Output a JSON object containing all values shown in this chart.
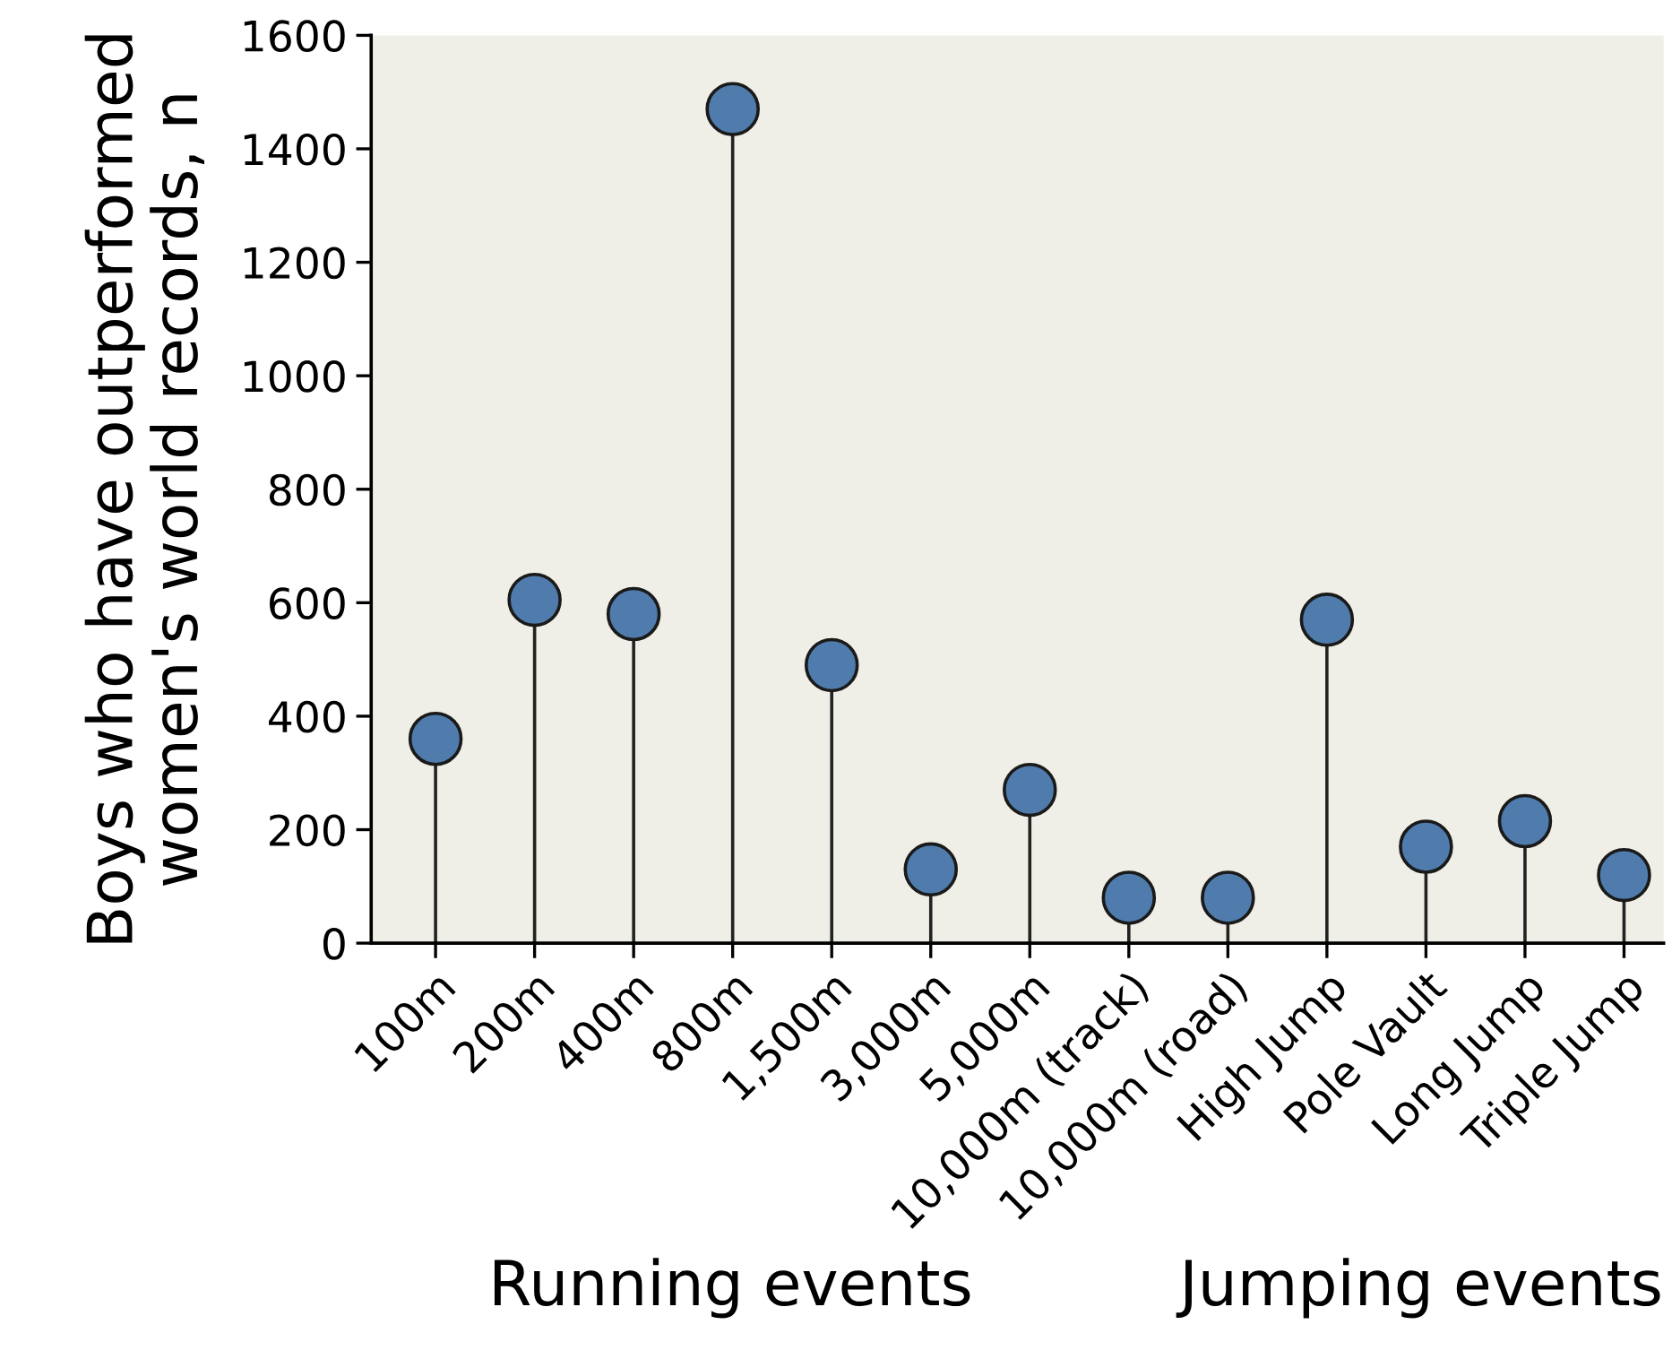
{
  "chart_data": {
    "type": "lollipop",
    "ylabel": "Boys who have outperformed\nwomen's world records, n",
    "categories": [
      "100m",
      "200m",
      "400m",
      "800m",
      "1,500m",
      "3,000m",
      "5,000m",
      "10,000m (track)",
      "10,000m (road)",
      "High Jump",
      "Pole Vault",
      "Long Jump",
      "Triple Jump"
    ],
    "values": [
      360,
      605,
      580,
      1470,
      490,
      130,
      270,
      80,
      80,
      570,
      170,
      215,
      120
    ],
    "color": "#4f7cac",
    "ylim": [
      0,
      1600
    ],
    "yticks": [
      0,
      200,
      400,
      600,
      800,
      1000,
      1200,
      1400,
      1600
    ],
    "marker": "circle",
    "annotations": [
      "Running events",
      "Jumping events"
    ]
  }
}
